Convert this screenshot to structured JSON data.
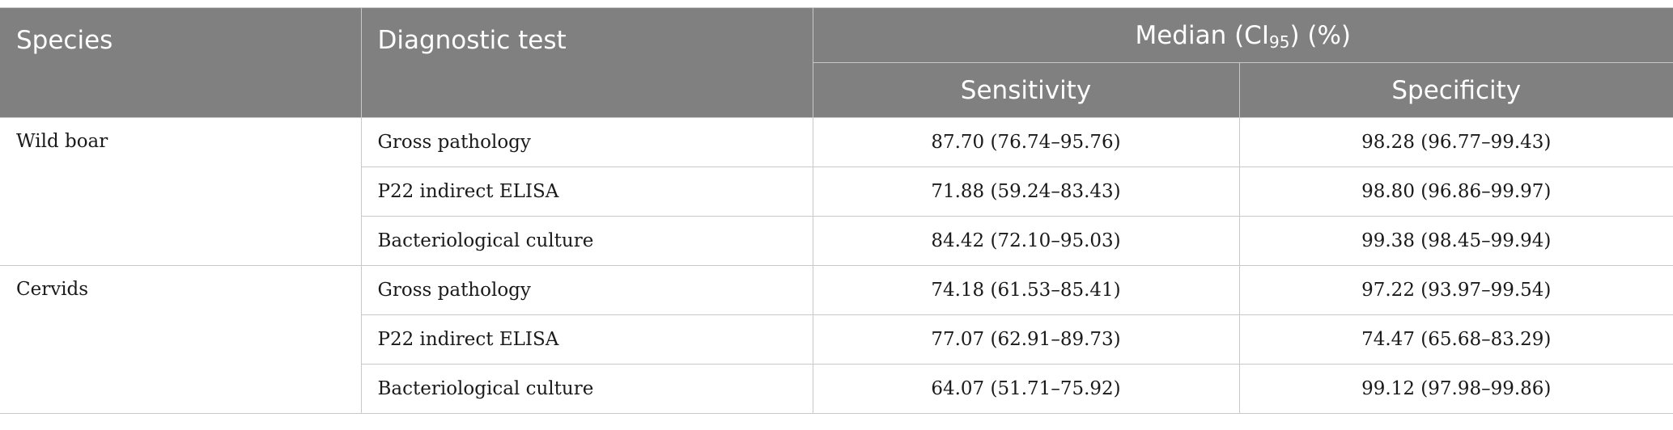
{
  "table": {
    "headers": {
      "species": "Species",
      "diagnostic_test": "Diagnostic test",
      "median_prefix": "Median (CI",
      "median_sub": "95",
      "median_suffix": ") (%)",
      "sensitivity": "Sensitivity",
      "specificity": "Specificity"
    },
    "groups": [
      {
        "species": "Wild boar",
        "rows": [
          {
            "test": "Gross pathology",
            "sensitivity": "87.70 (76.74–95.76)",
            "specificity": "98.28 (96.77–99.43)"
          },
          {
            "test": "P22 indirect ELISA",
            "sensitivity": "71.88 (59.24–83.43)",
            "specificity": "98.80 (96.86–99.97)"
          },
          {
            "test": "Bacteriological culture",
            "sensitivity": "84.42 (72.10–95.03)",
            "specificity": "99.38 (98.45–99.94)"
          }
        ]
      },
      {
        "species": "Cervids",
        "rows": [
          {
            "test": "Gross pathology",
            "sensitivity": "74.18 (61.53–85.41)",
            "specificity": "97.22 (93.97–99.54)"
          },
          {
            "test": "P22 indirect ELISA",
            "sensitivity": "77.07 (62.91–89.73)",
            "specificity": "74.47 (65.68–83.29)"
          },
          {
            "test": "Bacteriological culture",
            "sensitivity": "64.07 (51.71–75.92)",
            "specificity": "99.12 (97.98–99.86)"
          }
        ]
      }
    ]
  }
}
